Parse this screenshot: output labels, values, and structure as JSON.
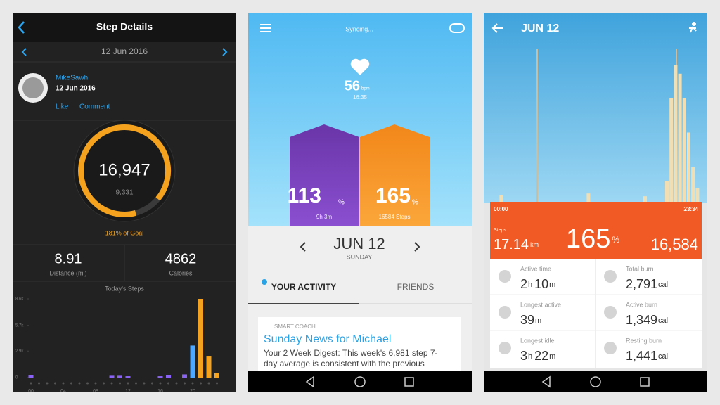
{
  "garmin": {
    "header": "Step Details",
    "date": "12 Jun 2016",
    "user": {
      "name": "MikeSawh",
      "date": "12 Jun 2016",
      "like": "Like",
      "comment": "Comment"
    },
    "steps": "16,947",
    "goal_steps": "9,331",
    "goal_text": "181% of Goal",
    "distance": {
      "value": "8.91",
      "label": "Distance (mi)"
    },
    "calories": {
      "value": "4862",
      "label": "Calories"
    },
    "chart_data": {
      "type": "bar",
      "title": "Today's Steps",
      "categories": [
        "00",
        null,
        null,
        null,
        "04",
        null,
        null,
        null,
        "08",
        null,
        null,
        null,
        "12",
        null,
        null,
        null,
        "16",
        null,
        null,
        null,
        "20",
        null,
        null,
        null
      ],
      "values": [
        300,
        0,
        0,
        0,
        0,
        0,
        0,
        0,
        0,
        0,
        200,
        200,
        150,
        0,
        0,
        0,
        150,
        250,
        0,
        350,
        3500,
        8600,
        2300,
        500
      ],
      "colors": [
        "#8a63f5",
        "#8a63f5",
        "#8a63f5",
        "#8a63f5",
        "#8a63f5",
        "#8a63f5",
        "#8a63f5",
        "#8a63f5",
        "#8a63f5",
        "#8a63f5",
        "#8a63f5",
        "#8a63f5",
        "#8a63f5",
        "#8a63f5",
        "#8a63f5",
        "#8a63f5",
        "#8a63f5",
        "#8a63f5",
        "#8a63f5",
        "#8a63f5",
        "#4fa8ff",
        "#f5a31e",
        "#f5a31e",
        "#f5a31e"
      ],
      "ylim": [
        0,
        8600
      ],
      "yticks": [
        {
          "value": 8600,
          "label": "8.6k"
        },
        {
          "value": 5700,
          "label": "5.7k"
        },
        {
          "value": 2900,
          "label": "2.9k"
        },
        0
      ]
    }
  },
  "jawbone": {
    "status": "Syncing...",
    "heart": {
      "value": "56",
      "unit": "bpm",
      "time": "16:35"
    },
    "sleep": {
      "value": "113",
      "unit": "%",
      "detail": "9h 3m"
    },
    "move": {
      "value": "165",
      "unit": "%",
      "detail": "16584 Steps"
    },
    "date": "JUN 12",
    "weekday": "SUNDAY",
    "tabs": [
      "YOUR ACTIVITY",
      "FRIENDS"
    ],
    "card": {
      "label": "SMART COACH",
      "title": "Sunday News for Michael",
      "body": [
        "Your 2 Week Digest: This week's 6,981 step 7-",
        "day average is consistent with the previous"
      ]
    }
  },
  "up_detail": {
    "date": "JUN 12",
    "chart_data": {
      "type": "bar",
      "values": [
        0,
        0,
        10,
        0,
        0,
        0,
        0,
        0,
        0,
        0,
        0,
        0,
        0,
        0,
        0,
        0,
        0,
        0,
        0,
        0,
        0,
        0,
        12,
        0,
        0,
        0,
        0,
        0,
        0,
        0,
        0,
        0,
        0,
        0,
        0,
        8,
        0,
        0,
        0,
        0,
        30,
        150,
        197,
        185,
        150,
        100,
        50,
        20
      ],
      "color": "#f1deb2",
      "ylim": [
        0,
        200
      ]
    },
    "start": "00:00",
    "end": "23:34",
    "steps_label": "Steps",
    "distance": {
      "value": "17.14",
      "unit": "km"
    },
    "percent": {
      "value": "165",
      "unit": "%"
    },
    "steps": "16,584",
    "stats": [
      {
        "label": "Active time",
        "parts": [
          "2",
          "h",
          "10",
          "m"
        ]
      },
      {
        "label": "Longest active",
        "parts": [
          "39",
          "m"
        ]
      },
      {
        "label": "Longest idle",
        "parts": [
          "3",
          "h",
          "22",
          "m"
        ]
      },
      {
        "label": "Total burn",
        "parts": [
          "2,791",
          "cal"
        ]
      },
      {
        "label": "Active burn",
        "parts": [
          "1,349",
          "cal"
        ]
      },
      {
        "label": "Resting burn",
        "parts": [
          "1,441",
          "cal"
        ]
      }
    ]
  }
}
